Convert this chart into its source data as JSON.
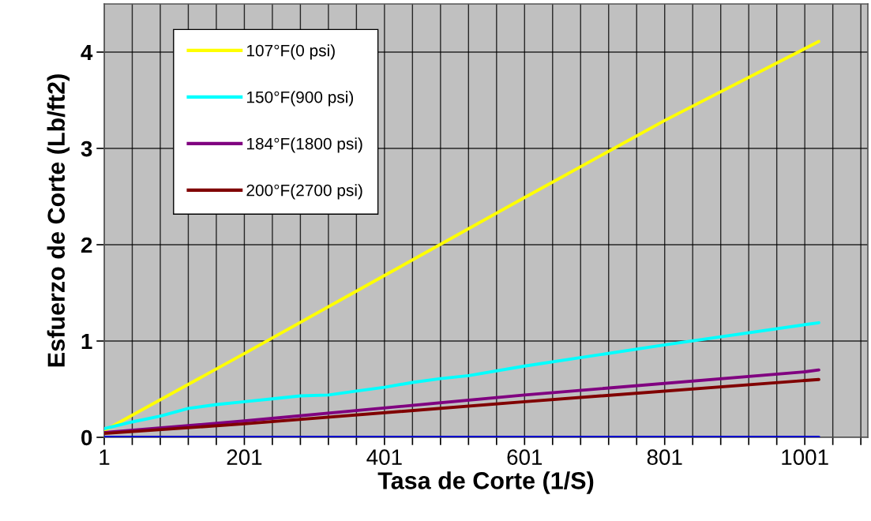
{
  "chart_data": {
    "type": "line",
    "xlabel": "Tasa de Corte (1/S)",
    "ylabel": "Esfuerzo de Corte (Lb/ft2)",
    "xlim": [
      1,
      1091
    ],
    "ylim": [
      0,
      4.5
    ],
    "xticks": [
      1,
      {
        "value": 41,
        "label": null
      },
      {
        "value": 81,
        "label": null
      },
      {
        "value": 121,
        "label": null
      },
      {
        "value": 161,
        "label": null
      },
      201,
      {
        "value": 241,
        "label": null
      },
      {
        "value": 281,
        "label": null
      },
      {
        "value": 321,
        "label": null
      },
      {
        "value": 361,
        "label": null
      },
      401,
      {
        "value": 441,
        "label": null
      },
      {
        "value": 481,
        "label": null
      },
      {
        "value": 521,
        "label": null
      },
      {
        "value": 561,
        "label": null
      },
      601,
      {
        "value": 641,
        "label": null
      },
      {
        "value": 681,
        "label": null
      },
      {
        "value": 721,
        "label": null
      },
      {
        "value": 761,
        "label": null
      },
      801,
      {
        "value": 841,
        "label": null
      },
      {
        "value": 881,
        "label": null
      },
      {
        "value": 921,
        "label": null
      },
      {
        "value": 961,
        "label": null
      },
      1001,
      {
        "value": 1041,
        "label": null
      },
      {
        "value": 1081,
        "label": null
      }
    ],
    "yticks": [
      0,
      1,
      2,
      3,
      4
    ],
    "grid": true,
    "legend": "top left",
    "marker": "none",
    "line_style": "solid",
    "series": [
      {
        "name": "107°F(0 psi)",
        "color": "#ffff00",
        "x": [
          1,
          201,
          401,
          601,
          801,
          1021
        ],
        "values": [
          0.07,
          0.87,
          1.68,
          2.49,
          3.29,
          4.11
        ]
      },
      {
        "name": "150°F(900 psi)",
        "color": "#00ffff",
        "x": [
          1,
          41,
          81,
          121,
          161,
          201,
          241,
          281,
          321,
          361,
          401,
          441,
          481,
          521,
          601,
          801,
          1001,
          1021
        ],
        "values": [
          0.09,
          0.16,
          0.22,
          0.3,
          0.34,
          0.37,
          0.4,
          0.43,
          0.44,
          0.48,
          0.52,
          0.57,
          0.61,
          0.64,
          0.74,
          0.96,
          1.17,
          1.19
        ]
      },
      {
        "name": "184°F(1800 psi)",
        "color": "#800080",
        "x": [
          1,
          201,
          601,
          1001,
          1021
        ],
        "values": [
          0.05,
          0.17,
          0.44,
          0.68,
          0.7
        ]
      },
      {
        "name": "200°F(2700 psi)",
        "color": "#800000",
        "x": [
          1,
          201,
          601,
          1001,
          1021
        ],
        "values": [
          0.04,
          0.14,
          0.37,
          0.59,
          0.6
        ]
      },
      {
        "color": "#0000cc",
        "x": [
          1,
          1021
        ],
        "values": [
          0,
          0
        ]
      }
    ]
  }
}
